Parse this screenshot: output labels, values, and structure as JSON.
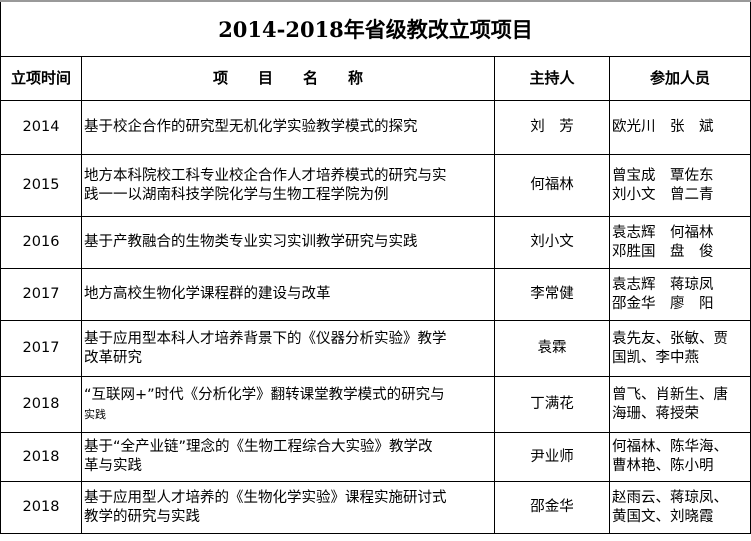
{
  "title": "2014-2018年省级教改立项项目",
  "headers": {
    "year": "立项时间",
    "project": "项　　目　　名　　称",
    "host": "主持人",
    "members": "参加人员"
  },
  "rows": [
    {
      "year": "2014",
      "project": "基于校企合作的研究型无机化学实验教学模式的探究",
      "host": "刘　芳",
      "members": "欧光川　张　斌"
    },
    {
      "year": "2015",
      "project": "地方本科院校工科专业校企合作人才培养模式的研究与实\n践一一以湖南科技学院化学与生物工程学院为例",
      "host": "何福林",
      "members": "曾宝成　覃佐东\n刘小文　曾二青"
    },
    {
      "year": "2016",
      "project": "基于产教融合的生物类专业实习实训教学研究与实践",
      "host": "刘小文",
      "members": "袁志辉　何福林\n邓胜国　盘　俊"
    },
    {
      "year": "2017",
      "project": "地方高校生物化学课程群的建设与改革",
      "host": "李常健",
      "members": "袁志辉　蒋琼凤\n邵金华　廖　阳"
    },
    {
      "year": "2017",
      "project": "基于应用型本科人才培养背景下的《仪器分析实验》教学\n改革研究",
      "host": "袁霖",
      "members": "袁先友、张敏、贾\n国凯、李中燕"
    },
    {
      "year": "2018",
      "project": "“互联网+”时代《分析化学》翻转课堂教学模式的研究与",
      "project_tail": "实践",
      "host": "丁满花",
      "members": "曾飞、肖新生、唐\n海珊、蒋授荣"
    },
    {
      "year": "2018",
      "project": "基于“全产业链”理念的《生物工程综合大实验》教学改\n革与实践",
      "host": "尹业师",
      "members": "何福林、陈华海、\n曹林艳、陈小明"
    },
    {
      "year": "2018",
      "project": "基于应用型人才培养的《生物化学实验》课程实施研讨式\n教学的研究与实践",
      "host": "邵金华",
      "members": "赵雨云、蒋琼凤、\n黄国文、刘晓霞"
    }
  ]
}
